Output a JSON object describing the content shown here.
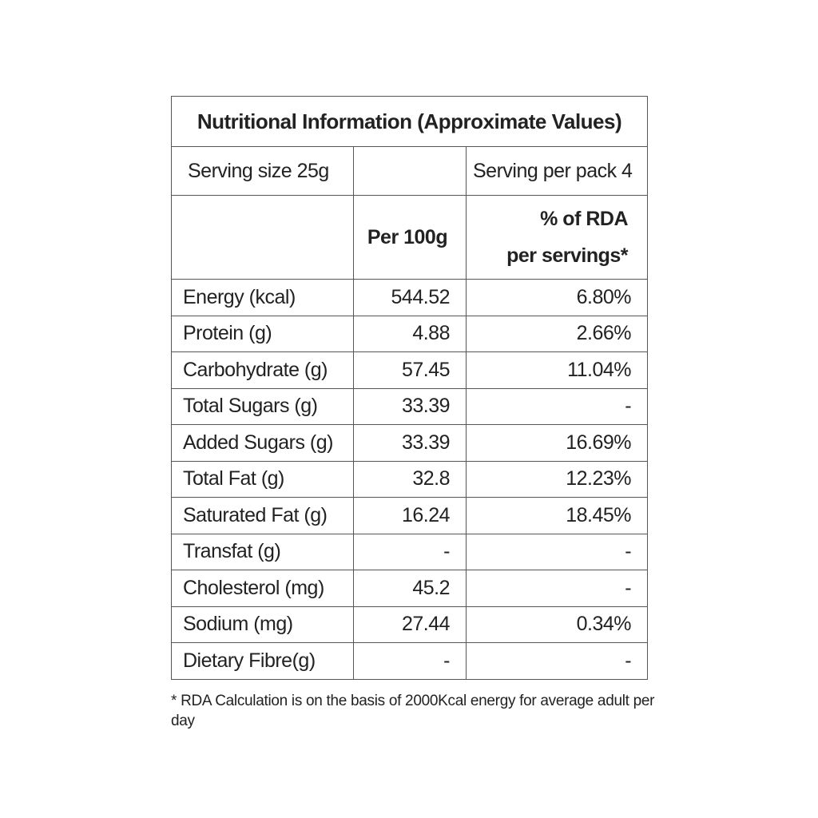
{
  "title": "Nutritional Information (Approximate Values)",
  "serving": {
    "size_label": "Serving size 25g",
    "per_pack_label": "Serving per pack 4"
  },
  "columns": {
    "per100": "Per 100g",
    "rda_line1": "% of RDA",
    "rda_line2": "per servings*"
  },
  "rows": [
    {
      "name": "Energy (kcal)",
      "per100": "544.52",
      "rda": "6.80%"
    },
    {
      "name": "Protein (g)",
      "per100": "4.88",
      "rda": "2.66%"
    },
    {
      "name": "Carbohydrate (g)",
      "per100": "57.45",
      "rda": "11.04%"
    },
    {
      "name": "Total Sugars (g)",
      "per100": "33.39",
      "rda": "-"
    },
    {
      "name": "Added Sugars (g)",
      "per100": "33.39",
      "rda": "16.69%"
    },
    {
      "name": "Total Fat (g)",
      "per100": "32.8",
      "rda": "12.23%"
    },
    {
      "name": "Saturated Fat (g)",
      "per100": "16.24",
      "rda": "18.45%"
    },
    {
      "name": "Transfat (g)",
      "per100": "-",
      "rda": "-"
    },
    {
      "name": "Cholesterol (mg)",
      "per100": "45.2",
      "rda": "-"
    },
    {
      "name": "Sodium (mg)",
      "per100": "27.44",
      "rda": "0.34%"
    },
    {
      "name": "Dietary Fibre(g)",
      "per100": "-",
      "rda": "-"
    }
  ],
  "footnote": "* RDA Calculation is on the basis of 2000Kcal energy for average adult per day"
}
